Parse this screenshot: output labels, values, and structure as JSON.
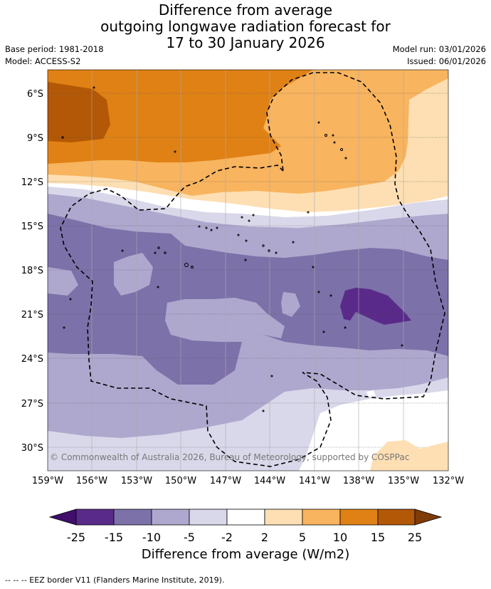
{
  "title": {
    "line1": "Difference from average",
    "line2": "outgoing longwave radiation forecast for",
    "line3": "17 to 30 January 2026"
  },
  "meta": {
    "base_period": "Base period: 1981-2018",
    "model": "Model: ACCESS-S2",
    "model_run": "Model run: 03/01/2026",
    "issued": "Issued: 06/01/2026"
  },
  "map": {
    "lat_labels": [
      "6°S",
      "9°S",
      "12°S",
      "15°S",
      "18°S",
      "21°S",
      "24°S",
      "27°S",
      "30°S"
    ],
    "lon_labels": [
      "159°W",
      "156°W",
      "153°W",
      "150°W",
      "147°W",
      "144°W",
      "141°W",
      "138°W",
      "135°W",
      "132°W"
    ],
    "copyright": "© Commonwealth of Australia 2026, Bureau of Meteorology, supported by COSPPac"
  },
  "legend": {
    "ticks": [
      "-25",
      "-15",
      "-10",
      "-5",
      "-2",
      "2",
      "5",
      "10",
      "15",
      "25"
    ],
    "title": "Difference from average (W/m2)",
    "colors": {
      "lt_minus25": "#3f0f6b",
      "m25_m15": "#5a2a8a",
      "m15_m10": "#7d71a9",
      "m10_m5": "#aea8ce",
      "m5_m2": "#d9d8ea",
      "m2_2": "#ffffff",
      "p2_p5": "#fddfb3",
      "p5_p10": "#f8b45e",
      "p10_p15": "#e08115",
      "p15_p25": "#b35806",
      "gt_25": "#7f3b08"
    }
  },
  "footer": "-- -- -- EEZ border V11 (Flanders Marine Institute, 2019)."
}
